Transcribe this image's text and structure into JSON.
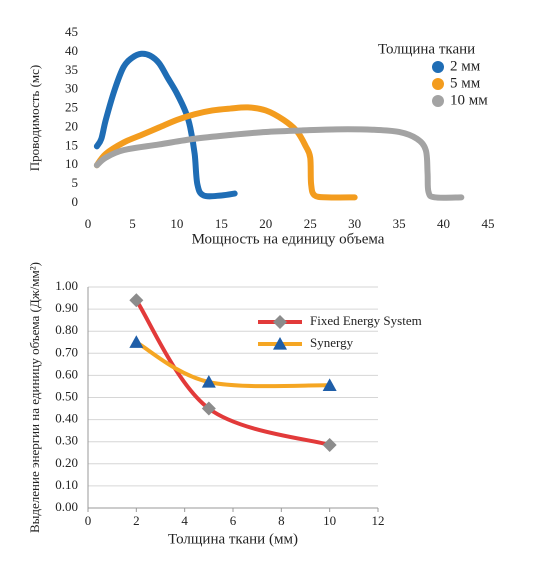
{
  "chart_data": [
    {
      "type": "line",
      "x_label": "Мощность на единицу объема",
      "y_label": "Проводимость (мс)",
      "legend_title": "Толщина ткани",
      "xlim": [
        0,
        45
      ],
      "xticks": [
        0,
        5,
        10,
        15,
        20,
        25,
        30,
        35,
        40,
        45
      ],
      "ylim": [
        0,
        45
      ],
      "yticks": [
        0,
        5,
        10,
        15,
        20,
        25,
        30,
        35,
        40,
        45
      ],
      "grid": false,
      "series": [
        {
          "name": "2 мм",
          "color": "#1f6db5",
          "x": [
            1,
            1.5,
            2,
            3,
            4,
            5,
            6,
            7,
            8,
            9,
            10,
            11,
            11.5,
            12,
            12.3,
            13,
            15,
            16.5
          ],
          "values": [
            15,
            17,
            22,
            30,
            36,
            38.5,
            39.5,
            39,
            37,
            33,
            29,
            24,
            20,
            13,
            5,
            2,
            2,
            2.5
          ]
        },
        {
          "name": "5 мм",
          "color": "#f39c1e",
          "x": [
            1,
            2,
            4,
            6,
            8,
            10,
            12,
            14,
            16,
            18,
            20,
            22,
            23.5,
            24.5,
            25,
            25.1,
            25.5,
            27,
            30
          ],
          "values": [
            10,
            13,
            16,
            18,
            20,
            22,
            23.5,
            24.5,
            25,
            25.3,
            24.5,
            22,
            19,
            15,
            12,
            5,
            2,
            1.5,
            1.5
          ]
        },
        {
          "name": "10 мм",
          "color": "#a3a3a3",
          "x": [
            1,
            2,
            4,
            8,
            12,
            16,
            20,
            24,
            28,
            32,
            35,
            37,
            38,
            38.2,
            38.3,
            39,
            42
          ],
          "values": [
            10,
            12,
            14,
            15.5,
            17,
            18,
            18.8,
            19.2,
            19.5,
            19.4,
            18.8,
            17,
            14,
            8,
            3,
            1.5,
            1.5
          ]
        }
      ]
    },
    {
      "type": "line",
      "x_label": "Толщина ткани (мм)",
      "y_label": "Выделение энергии на единицу объема  (Дж/мм²)",
      "xlim": [
        0,
        12
      ],
      "xticks": [
        0,
        2,
        4,
        6,
        8,
        10,
        12
      ],
      "ylim": [
        0,
        1
      ],
      "yticks": [
        {
          "value": 0,
          "label": "0.00"
        },
        {
          "value": 0.1,
          "label": "0.10"
        },
        {
          "value": 0.2,
          "label": "0.20"
        },
        {
          "value": 0.3,
          "label": "0.30"
        },
        {
          "value": 0.4,
          "label": "0.40"
        },
        {
          "value": 0.5,
          "label": "0.50"
        },
        {
          "value": 0.6,
          "label": "0.60"
        },
        {
          "value": 0.7,
          "label": "0.70"
        },
        {
          "value": 0.8,
          "label": "0.80"
        },
        {
          "value": 0.9,
          "label": "0.90"
        },
        {
          "value": 1,
          "label": "1.00"
        }
      ],
      "grid": true,
      "series": [
        {
          "name": "Fixed Energy System",
          "color": "#e23a3a",
          "marker": "diamond",
          "marker_color": "#8c8c8c",
          "x": [
            2,
            5,
            10
          ],
          "values": [
            0.94,
            0.45,
            0.285
          ]
        },
        {
          "name": "Synergy",
          "color": "#f5a623",
          "marker": "triangle",
          "marker_color": "#1f5ea8",
          "x": [
            2,
            5,
            10
          ],
          "values": [
            0.75,
            0.57,
            0.555
          ]
        }
      ]
    }
  ]
}
